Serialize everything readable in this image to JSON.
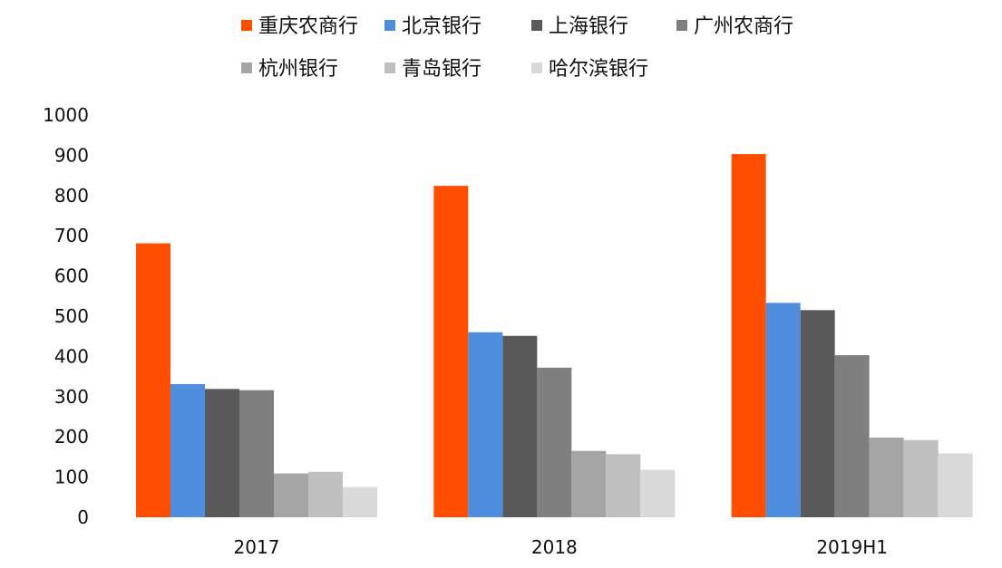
{
  "chart_data": {
    "type": "bar",
    "categories": [
      "2017",
      "2018",
      "2019H1"
    ],
    "series": [
      {
        "name": "重庆农商行",
        "color": "#FF4E00",
        "values": [
          681,
          824,
          903
        ]
      },
      {
        "name": "北京银行",
        "color": "#4F8EDD",
        "values": [
          331,
          460,
          533
        ]
      },
      {
        "name": "上海银行",
        "color": "#595959",
        "values": [
          319,
          451,
          515
        ]
      },
      {
        "name": "广州农商行",
        "color": "#7F7F7F",
        "values": [
          316,
          372,
          403
        ]
      },
      {
        "name": "杭州银行",
        "color": "#A5A5A5",
        "values": [
          109,
          165,
          198
        ]
      },
      {
        "name": "青岛银行",
        "color": "#BFBFBF",
        "values": [
          113,
          157,
          192
        ]
      },
      {
        "name": "哈尔滨银行",
        "color": "#D9D9D9",
        "values": [
          75,
          118,
          159
        ]
      }
    ],
    "ylim": [
      0,
      1000
    ],
    "yticks": [
      "0",
      "100",
      "200",
      "300",
      "400",
      "500",
      "600",
      "700",
      "800",
      "900",
      "1000"
    ],
    "grid": false,
    "legend_position": "top",
    "title": "",
    "xlabel": "",
    "ylabel": ""
  }
}
